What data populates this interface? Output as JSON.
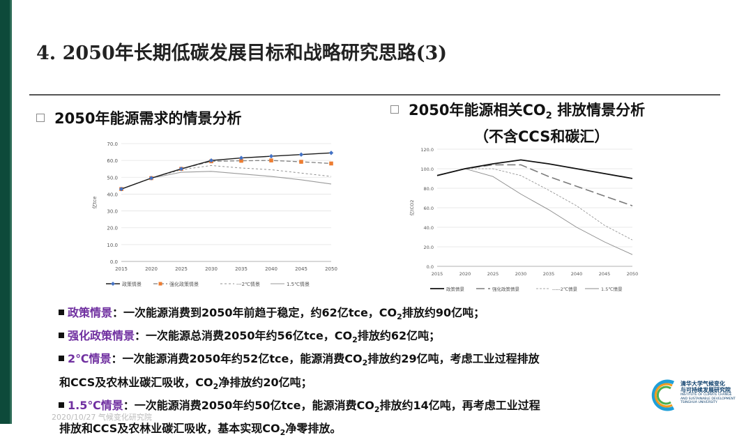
{
  "title": "4. 2050年长期低碳发展目标和战略研究思路(3)",
  "left_heading": "2050年能源需求的情景分析",
  "right_heading_pre": "2050年能源相关CO",
  "right_heading_sub": "2",
  "right_heading_post": " 排放情景分析",
  "right_heading_line2": "（不含CCS和碳汇）",
  "chart_data": [
    {
      "type": "line",
      "ylabel": "亿tce",
      "x": [
        2015,
        2020,
        2025,
        2030,
        2035,
        2040,
        2045,
        2050
      ],
      "ylim": [
        0,
        70
      ],
      "yticks": [
        "0.0",
        "10.0",
        "20.0",
        "30.0",
        "40.0",
        "50.0",
        "60.0",
        "70.0"
      ],
      "xticks": [
        "2015",
        "2020",
        "2025",
        "2030",
        "2035",
        "2040",
        "2045",
        "2050"
      ],
      "series": [
        {
          "name": "政策情景",
          "values": [
            43,
            49.5,
            55,
            60,
            61.5,
            62.5,
            63.5,
            64.5
          ],
          "color": "#1a1a1a",
          "marker": "diamond",
          "dash": ""
        },
        {
          "name": "强化政策情景",
          "values": [
            43,
            49.5,
            55,
            59.5,
            59.8,
            60,
            59.2,
            58.2
          ],
          "color": "#7f7f7f",
          "marker": "square",
          "dash": "6 3"
        },
        {
          "name": "2℃情景",
          "values": [
            43,
            49.5,
            54.5,
            57,
            55.5,
            54.5,
            52.5,
            50.5
          ],
          "color": "#8f8f8f",
          "marker": "none",
          "dash": "3 3"
        },
        {
          "name": "1.5℃情景",
          "values": [
            43,
            49.5,
            53,
            53.5,
            52,
            50.5,
            48.5,
            46
          ],
          "color": "#9a9a9a",
          "marker": "none",
          "dash": ""
        }
      ],
      "legend": [
        "政策情景",
        "强化政策情景",
        "2℃情景",
        "1.5℃情景"
      ],
      "legend_prefix": [
        "",
        "",
        "---",
        ""
      ]
    },
    {
      "type": "line",
      "ylabel": "亿tCO2",
      "x": [
        2015,
        2020,
        2025,
        2030,
        2035,
        2040,
        2045,
        2050
      ],
      "ylim": [
        0,
        120
      ],
      "yticks": [
        "0.0",
        "20.0",
        "40.0",
        "60.0",
        "80.0",
        "100.0",
        "120.0"
      ],
      "xticks": [
        "2015",
        "2020",
        "2025",
        "2030",
        "2035",
        "2040",
        "2045",
        "2050"
      ],
      "series": [
        {
          "name": "政策情景",
          "values": [
            93,
            100,
            105,
            109,
            105,
            100,
            95,
            90
          ],
          "color": "#111111",
          "dash": ""
        },
        {
          "name": "强化政策情景",
          "values": [
            93,
            100,
            104,
            104,
            92,
            82,
            72,
            62
          ],
          "color": "#7a7a7a",
          "dash": "12 5"
        },
        {
          "name": "2℃情景",
          "values": [
            93,
            100,
            100,
            93,
            78,
            62,
            42,
            27
          ],
          "color": "#8a8a8a",
          "dash": "3 2"
        },
        {
          "name": "1.5℃情景",
          "values": [
            93,
            100,
            92,
            74,
            58,
            40,
            25,
            12
          ],
          "color": "#8a8a8a",
          "dash": ""
        }
      ],
      "legend": [
        "政策情景",
        "强化政策情景",
        "2℃情景",
        "1.5℃情景"
      ],
      "legend_prefix": [
        "",
        "",
        "-----",
        ""
      ]
    }
  ],
  "notes": [
    {
      "term": "政策情景",
      "text_pre": "：一次能源消费到2050年前趋于稳定，约62亿tce，CO",
      "sub": "2",
      "text_post": "排放约90亿吨；",
      "cont": []
    },
    {
      "term": "强化政策情景",
      "text_pre": "：一次能源总消费2050年约56亿tce，CO",
      "sub": "2",
      "text_post": "排放约62亿吨；",
      "cont": []
    },
    {
      "term": "2℃情景",
      "text_pre": "：一次能源消费2050年约52亿tce，能源消费CO",
      "sub": "2",
      "text_post": "排放约29亿吨，考虑工业过程排放",
      "cont_pre": "和CCS及农林业碳汇吸收，CO",
      "cont_sub": "2",
      "cont_post": "净排放约20亿吨；"
    },
    {
      "term": "1.5℃情景",
      "text_pre": "：一次能源消费2050年约50亿tce，能源消费CO",
      "sub": "2",
      "text_post": "排放约14亿吨，再考虑工业过程",
      "cont_pre": "排放和CCS及农林业碳汇吸收，基本实现CO",
      "cont_sub": "2",
      "cont_post": "净零排放。"
    }
  ],
  "footer_date": "2020/10/27  气候变化研究院",
  "logo": {
    "cn_line1": "清华大学气候变化",
    "cn_line2": "与可持续发展研究院",
    "en_line1": "INSTITUTE OF CLIMATE CHANGE",
    "en_line2": "AND SUSTAINABLE DEVELOPMENT",
    "en_line3": "TSINGHUA UNIVERSITY"
  },
  "colors": {
    "accent": "#7030a0",
    "sidebar": "#0d4a3a",
    "logo_blue": "#0d3f6b"
  }
}
